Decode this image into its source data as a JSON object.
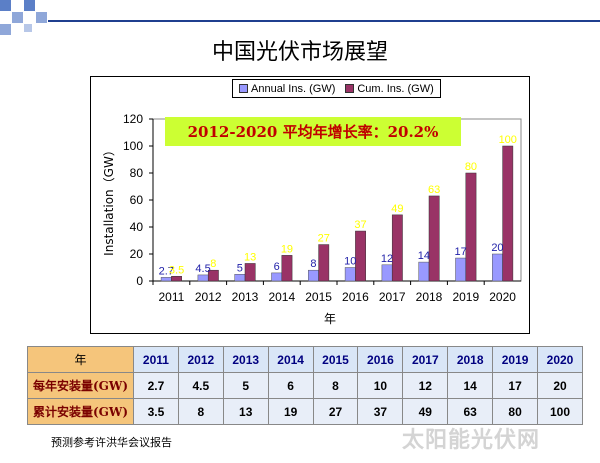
{
  "slide": {
    "title": "中国光伏市场展望",
    "source_note": "预测参考许洪华会议报告",
    "watermark": "太阳能光伏网"
  },
  "colors": {
    "annual": "#9999ff",
    "cumulative": "#993366",
    "annual_label": "#1f1fa8",
    "cumulative_label": "#ffff00",
    "note_bg": "#ccff33",
    "note_text": "#c00000"
  },
  "chart_data": {
    "type": "bar",
    "title": "",
    "xlabel": "年",
    "ylabel": "Installation（GW）",
    "ylim": [
      0,
      120
    ],
    "yticks": [
      0,
      20,
      40,
      60,
      80,
      100,
      120
    ],
    "categories": [
      "2011",
      "2012",
      "2013",
      "2014",
      "2015",
      "2016",
      "2017",
      "2018",
      "2019",
      "2020"
    ],
    "series": [
      {
        "name": "Annual Ins. (GW)",
        "values": [
          2.7,
          4.5,
          5,
          6,
          8,
          10,
          12,
          14,
          17,
          20
        ]
      },
      {
        "name": "Cum. Ins. (GW)",
        "values": [
          3.5,
          8,
          13,
          19,
          27,
          37,
          49,
          63,
          80,
          100
        ]
      }
    ],
    "data_labels": {
      "annual": [
        "2.7",
        "4.5",
        "5",
        "6",
        "8",
        "10",
        "12",
        "14",
        "17",
        "20"
      ],
      "cumulative": [
        "3.5",
        "8",
        "13",
        "19",
        "27",
        "37",
        "49",
        "63",
        "80",
        "100"
      ]
    },
    "legend": {
      "position": "top",
      "items": [
        "Annual Ins. (GW)",
        "Cum. Ins. (GW)"
      ]
    },
    "annotation": "2012-2020 平均年增长率：20.2%",
    "grid": false
  },
  "table": {
    "header_label": "年",
    "years": [
      "2011",
      "2012",
      "2013",
      "2014",
      "2015",
      "2016",
      "2017",
      "2018",
      "2019",
      "2020"
    ],
    "rows": [
      {
        "label": "每年安装量(GW)",
        "values": [
          "2.7",
          "4.5",
          "5",
          "6",
          "8",
          "10",
          "12",
          "14",
          "17",
          "20"
        ]
      },
      {
        "label": "累计安装量(GW)",
        "values": [
          "3.5",
          "8",
          "13",
          "19",
          "27",
          "37",
          "49",
          "63",
          "80",
          "100"
        ]
      }
    ]
  }
}
